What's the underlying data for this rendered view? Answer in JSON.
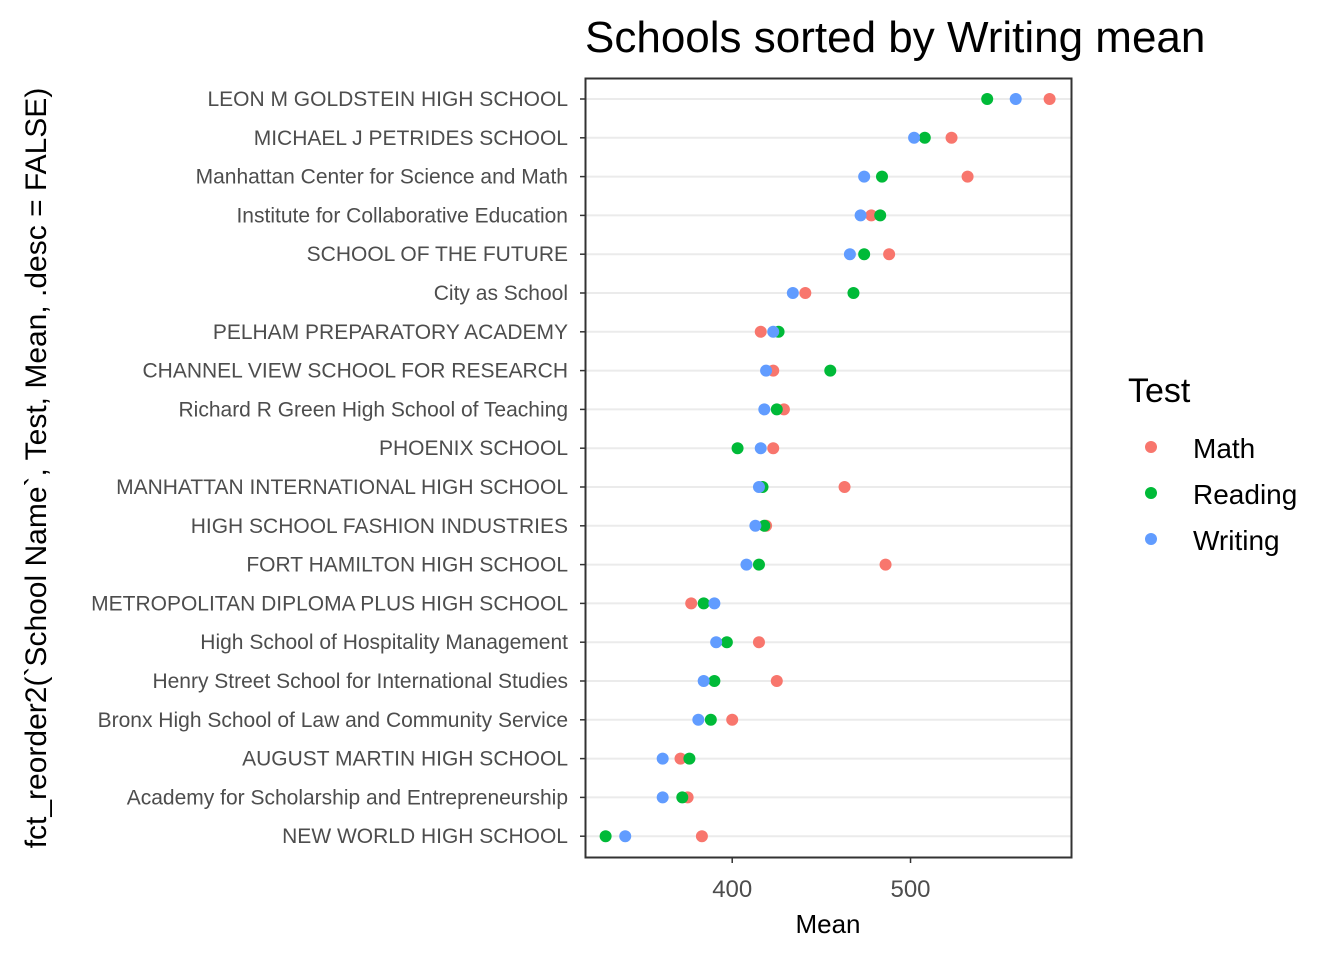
{
  "chart_data": {
    "type": "scatter",
    "title": "Schools sorted by Writing mean",
    "xlabel": "Mean",
    "ylabel": "fct_reorder2(`School Name`, Test, Mean, .desc = FALSE)",
    "xlim": [
      318,
      590
    ],
    "xticks": [
      400,
      500
    ],
    "grid": "horizontal-major",
    "legend": {
      "title": "Test",
      "placement": "right",
      "entries": [
        {
          "name": "Math",
          "color": "#F8766D"
        },
        {
          "name": "Reading",
          "color": "#00BA38"
        },
        {
          "name": "Writing",
          "color": "#619CFF"
        }
      ]
    },
    "categories": [
      "LEON M GOLDSTEIN HIGH SCHOOL",
      "MICHAEL J PETRIDES SCHOOL",
      "Manhattan Center for Science and Math",
      "Institute for Collaborative Education",
      "SCHOOL OF THE FUTURE",
      "City as School",
      "PELHAM PREPARATORY ACADEMY",
      "CHANNEL VIEW SCHOOL FOR RESEARCH",
      "Richard R Green High School of Teaching",
      "PHOENIX SCHOOL",
      "MANHATTAN INTERNATIONAL HIGH SCHOOL",
      "HIGH SCHOOL FASHION INDUSTRIES",
      "FORT HAMILTON HIGH SCHOOL",
      "METROPOLITAN DIPLOMA PLUS HIGH SCHOOL",
      "High School of Hospitality Management",
      "Henry Street School for International Studies",
      "Bronx High School of Law and Community Service",
      "AUGUST MARTIN HIGH SCHOOL",
      "Academy for Scholarship and Entrepreneurship",
      "NEW WORLD HIGH SCHOOL"
    ],
    "series": [
      {
        "name": "Math",
        "color": "#F8766D",
        "values": [
          578,
          523,
          532,
          478,
          488,
          441,
          416,
          423,
          429,
          423,
          463,
          419,
          486,
          377,
          415,
          425,
          400,
          371,
          375,
          383
        ]
      },
      {
        "name": "Reading",
        "color": "#00BA38",
        "values": [
          543,
          508,
          484,
          483,
          474,
          468,
          426,
          455,
          425,
          403,
          417,
          418,
          415,
          384,
          397,
          390,
          388,
          376,
          372,
          329
        ]
      },
      {
        "name": "Writing",
        "color": "#619CFF",
        "values": [
          559,
          502,
          474,
          472,
          466,
          434,
          423,
          419,
          418,
          416,
          415,
          413,
          408,
          390,
          391,
          384,
          381,
          361,
          361,
          340
        ]
      }
    ]
  }
}
